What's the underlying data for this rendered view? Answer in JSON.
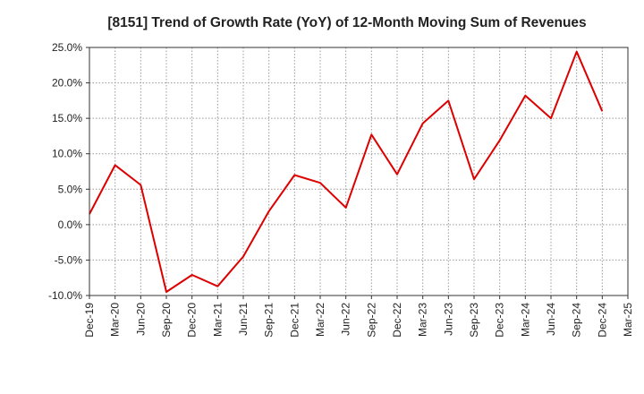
{
  "chart_data": {
    "type": "line",
    "title": "[8151]  Trend of Growth Rate (YoY) of 12-Month Moving Sum of Revenues",
    "xlabel": "",
    "ylabel": "",
    "ylim": [
      -10,
      25
    ],
    "grid": true,
    "x_ticks": [
      "Dec-19",
      "Mar-20",
      "Jun-20",
      "Sep-20",
      "Dec-20",
      "Mar-21",
      "Jun-21",
      "Sep-21",
      "Dec-21",
      "Mar-22",
      "Jun-22",
      "Sep-22",
      "Dec-22",
      "Mar-23",
      "Jun-23",
      "Sep-23",
      "Dec-23",
      "Mar-24",
      "Jun-24",
      "Sep-24",
      "Dec-24",
      "Mar-25"
    ],
    "y_ticks": [
      25,
      20,
      15,
      10,
      5,
      0,
      -5,
      -10
    ],
    "y_tick_labels": [
      "25.0%",
      "20.0%",
      "15.0%",
      "10.0%",
      "5.0%",
      "0.0%",
      "-5.0%",
      "-10.0%"
    ],
    "series": [
      {
        "name": "",
        "color": "#dd0000",
        "x": [
          "Dec-19",
          "Mar-20",
          "Jun-20",
          "Sep-20",
          "Dec-20",
          "Mar-21",
          "Jun-21",
          "Sep-21",
          "Dec-21",
          "Mar-22",
          "Jun-22",
          "Sep-22",
          "Dec-22",
          "Mar-23",
          "Jun-23",
          "Sep-23",
          "Dec-23",
          "Mar-24",
          "Jun-24",
          "Sep-24",
          "Dec-24"
        ],
        "values": [
          1.5,
          8.4,
          5.6,
          -9.5,
          -7.1,
          -8.7,
          -4.5,
          1.9,
          7.0,
          5.9,
          2.4,
          12.7,
          7.1,
          14.3,
          17.5,
          6.4,
          11.9,
          18.2,
          15.0,
          24.4,
          16.0
        ]
      }
    ]
  }
}
